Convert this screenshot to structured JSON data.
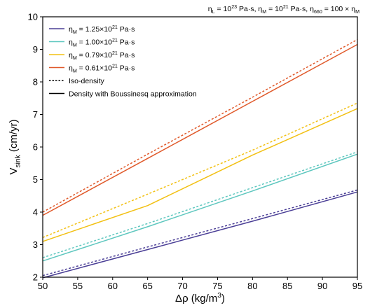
{
  "chart_data": {
    "type": "line",
    "title": "",
    "header_note": {
      "parts": [
        {
          "t": "η",
          "s": "n"
        },
        {
          "t": "L",
          "s": "sub"
        },
        {
          "t": " = 10",
          "s": "n"
        },
        {
          "t": "23",
          "s": "sup"
        },
        {
          "t": " Pa·s,  η",
          "s": "n"
        },
        {
          "t": "M",
          "s": "sub"
        },
        {
          "t": " = 10",
          "s": "n"
        },
        {
          "t": "21",
          "s": "sup"
        },
        {
          "t": " Pa·s,  η",
          "s": "n"
        },
        {
          "t": "660",
          "s": "sub"
        },
        {
          "t": " = 100 × η",
          "s": "n"
        },
        {
          "t": "M",
          "s": "sub"
        }
      ]
    },
    "xlabel": {
      "parts": [
        {
          "t": "Δρ (kg/m",
          "s": "n"
        },
        {
          "t": "3",
          "s": "sup"
        },
        {
          "t": ")",
          "s": "n"
        }
      ]
    },
    "ylabel": {
      "parts": [
        {
          "t": "V",
          "s": "n"
        },
        {
          "t": "sink",
          "s": "sub"
        },
        {
          "t": " (cm/yr)",
          "s": "n"
        }
      ]
    },
    "xlim": [
      50,
      95
    ],
    "ylim": [
      2,
      10
    ],
    "x_ticks": [
      "50",
      "55",
      "60",
      "65",
      "70",
      "75",
      "80",
      "85",
      "90",
      "95"
    ],
    "y_ticks": [
      "2",
      "3",
      "4",
      "5",
      "6",
      "7",
      "8",
      "9",
      "10"
    ],
    "grid": false,
    "legend_position": "top-left",
    "legend": [
      {
        "parts": [
          {
            "t": "η",
            "s": "n"
          },
          {
            "t": "M",
            "s": "sub"
          },
          {
            "t": " = 1.25×10",
            "s": "n"
          },
          {
            "t": "21",
            "s": "sup"
          },
          {
            "t": " Pa·s",
            "s": "n"
          }
        ],
        "color": "#4a3e96",
        "style": "solid"
      },
      {
        "parts": [
          {
            "t": "η",
            "s": "n"
          },
          {
            "t": "M",
            "s": "sub"
          },
          {
            "t": " = 1.00×10",
            "s": "n"
          },
          {
            "t": "21",
            "s": "sup"
          },
          {
            "t": " Pa·s",
            "s": "n"
          }
        ],
        "color": "#5ec7bf",
        "style": "solid"
      },
      {
        "parts": [
          {
            "t": "η",
            "s": "n"
          },
          {
            "t": "M",
            "s": "sub"
          },
          {
            "t": " = 0.79×10",
            "s": "n"
          },
          {
            "t": "21",
            "s": "sup"
          },
          {
            "t": " Pa·s",
            "s": "n"
          }
        ],
        "color": "#f2c012",
        "style": "solid"
      },
      {
        "parts": [
          {
            "t": "η",
            "s": "n"
          },
          {
            "t": "M",
            "s": "sub"
          },
          {
            "t": " = 0.61×10",
            "s": "n"
          },
          {
            "t": "21",
            "s": "sup"
          },
          {
            "t": " Pa·s",
            "s": "n"
          }
        ],
        "color": "#e0592a",
        "style": "solid"
      },
      {
        "parts": [
          {
            "t": "Iso-density",
            "s": "n"
          }
        ],
        "color": "#000000",
        "style": "dotted"
      },
      {
        "parts": [
          {
            "t": "Density with Boussinesq approximation",
            "s": "n"
          }
        ],
        "color": "#000000",
        "style": "solid"
      }
    ],
    "x": [
      50,
      65,
      80,
      95
    ],
    "series": [
      {
        "viscosity": "1.25e21",
        "color": "#4a3e96",
        "style": "solid",
        "values": [
          1.98,
          2.85,
          3.72,
          4.62
        ]
      },
      {
        "viscosity": "1.25e21",
        "color": "#4a3e96",
        "style": "dotted",
        "values": [
          2.05,
          2.93,
          3.8,
          4.68
        ]
      },
      {
        "viscosity": "1.00e21",
        "color": "#5ec7bf",
        "style": "solid",
        "values": [
          2.5,
          3.55,
          4.65,
          5.78
        ]
      },
      {
        "viscosity": "1.00e21",
        "color": "#5ec7bf",
        "style": "dotted",
        "values": [
          2.6,
          3.65,
          4.75,
          5.85
        ]
      },
      {
        "viscosity": "0.79e21",
        "color": "#f2c012",
        "style": "solid",
        "values": [
          3.1,
          4.2,
          5.75,
          7.18
        ]
      },
      {
        "viscosity": "0.79e21",
        "color": "#f2c012",
        "style": "dotted",
        "values": [
          3.22,
          4.55,
          5.9,
          7.35
        ]
      },
      {
        "viscosity": "0.61e21",
        "color": "#e0592a",
        "style": "solid",
        "values": [
          3.9,
          5.65,
          7.4,
          9.15
        ]
      },
      {
        "viscosity": "0.61e21",
        "color": "#e0592a",
        "style": "dotted",
        "values": [
          4.0,
          5.78,
          7.53,
          9.3
        ]
      }
    ]
  }
}
